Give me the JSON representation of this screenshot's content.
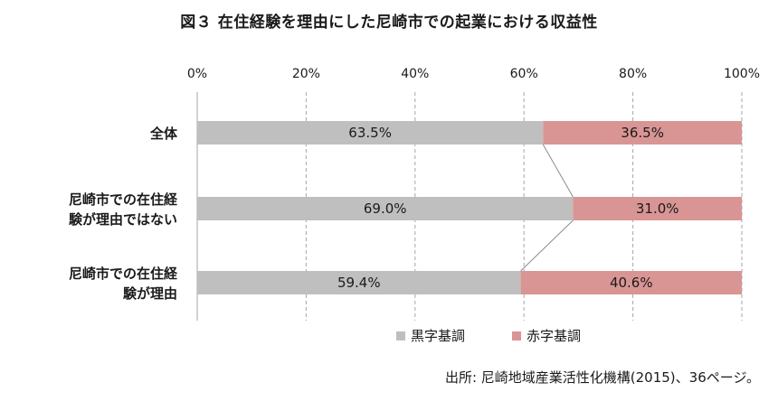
{
  "chart_data": {
    "type": "bar",
    "orientation": "horizontal",
    "stacked": true,
    "title": "図３ 在住経験を理由にした尼崎市での起業における収益性",
    "categories": [
      [
        "全体"
      ],
      [
        "尼崎市での在住経",
        "験が理由ではない"
      ],
      [
        "尼崎市での在住経",
        "験が理由"
      ]
    ],
    "series": [
      {
        "name": "黒字基調",
        "color": "#bfbfbf",
        "values": [
          63.5,
          69.0,
          59.4
        ],
        "labels": [
          "63.5%",
          "69.0%",
          "59.4%"
        ]
      },
      {
        "name": "赤字基調",
        "color": "#d99594",
        "values": [
          36.5,
          31.0,
          40.6
        ],
        "labels": [
          "36.5%",
          "31.0%",
          "40.6%"
        ]
      }
    ],
    "xlim": [
      0,
      100
    ],
    "xticks": [
      "0%",
      "20%",
      "40%",
      "60%",
      "80%",
      "100%"
    ],
    "grid": "vertical dashed",
    "legend_position": "bottom",
    "series_lines": true
  },
  "source": "出所: 尼崎地域産業活性化機構(2015)、36ページ。"
}
